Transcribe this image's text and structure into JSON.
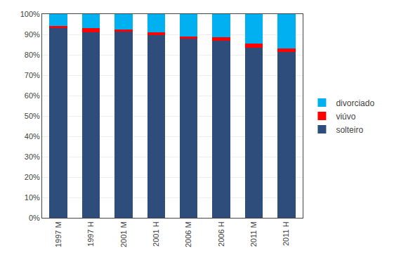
{
  "chart_data": {
    "type": "bar",
    "stacked": true,
    "categories": [
      "1997 M",
      "1997 H",
      "2001 M",
      "2001 H",
      "2006 M",
      "2006 H",
      "2011 M",
      "2011 H"
    ],
    "series": [
      {
        "name": "solteiro",
        "color": "#2E4D7B",
        "values": [
          93.0,
          91.0,
          91.5,
          89.5,
          88.0,
          87.0,
          83.5,
          81.5
        ]
      },
      {
        "name": "viúvo",
        "color": "#FF0000",
        "values": [
          1.0,
          2.0,
          1.0,
          1.5,
          1.0,
          1.5,
          2.0,
          1.5
        ]
      },
      {
        "name": "divorciado",
        "color": "#00B0F0",
        "values": [
          6.0,
          7.0,
          7.5,
          9.0,
          11.0,
          11.5,
          14.5,
          17.0
        ]
      }
    ],
    "ylim": [
      0,
      100
    ],
    "yticks": [
      {
        "value": 0,
        "label": "0%"
      },
      {
        "value": 10,
        "label": "10%"
      },
      {
        "value": 20,
        "label": "20%"
      },
      {
        "value": 30,
        "label": "30%"
      },
      {
        "value": 40,
        "label": "40%"
      },
      {
        "value": 50,
        "label": "50%"
      },
      {
        "value": 60,
        "label": "60%"
      },
      {
        "value": 70,
        "label": "70%"
      },
      {
        "value": 80,
        "label": "80%"
      },
      {
        "value": 90,
        "label": "90%"
      },
      {
        "value": 100,
        "label": "100%"
      }
    ],
    "grid": true,
    "legend": "right"
  }
}
